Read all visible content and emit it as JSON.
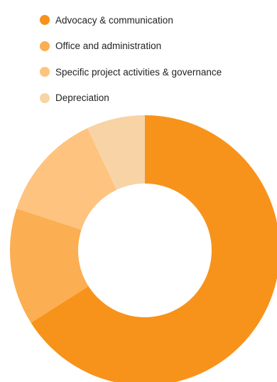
{
  "chart_data": {
    "type": "pie",
    "title": "",
    "categories": [
      "Advocacy & communication",
      "Office and administration",
      "Specific project activities & governance",
      "Depreciation"
    ],
    "values": [
      66,
      14,
      13,
      7
    ],
    "colors": [
      "#F7931A",
      "#FBAE52",
      "#FDC37F",
      "#F8D3A6"
    ],
    "legend_position": "top",
    "donut": true
  }
}
